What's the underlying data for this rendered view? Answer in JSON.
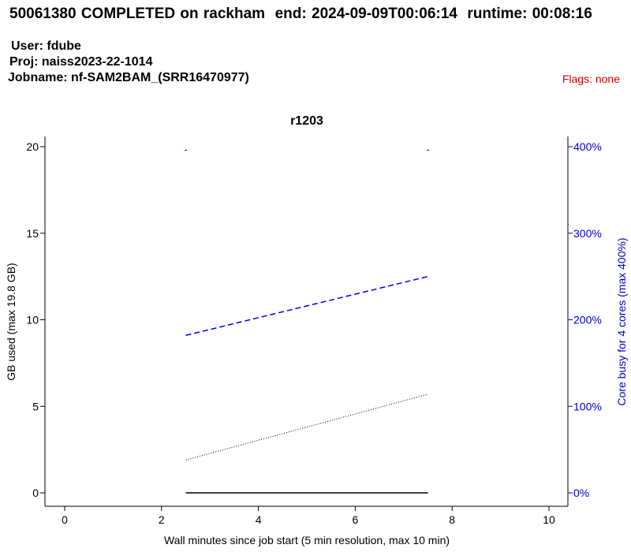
{
  "header": {
    "job_id": "50061380",
    "status_text": "COMPLETED on rackham",
    "end_label": "end:",
    "end_value": "2024-09-09T00:06:14",
    "runtime_label": "runtime:",
    "runtime_value": "00:08:16",
    "user_label": "User:",
    "user_value": "fdube",
    "proj_label": "Proj:",
    "proj_value": "naiss2023-22-1014",
    "jobname_label": "Jobname:",
    "jobname_value": "nf-SAM2BAM_(SRR16470977)",
    "flags_label": "Flags:",
    "flags_value": "none",
    "flags_color": "#d40000"
  },
  "chart_data": {
    "type": "line",
    "title": "r1203",
    "xlabel": "Wall minutes since job start (5 min resolution, max 10 min)",
    "ylabel": "GB used (max 19.8 GB)",
    "y2label": "Core busy for 4 cores (max 400%)",
    "xlim": [
      0,
      10
    ],
    "ylim": [
      0,
      20
    ],
    "y2lim": [
      0,
      400
    ],
    "xticks": [
      0,
      2,
      4,
      6,
      8,
      10
    ],
    "yticks": [
      0,
      5,
      10,
      15,
      20
    ],
    "y2ticks": [
      0,
      100,
      200,
      300,
      400
    ],
    "y2tick_labels": [
      "0%",
      "100%",
      "200%",
      "300%",
      "400%"
    ],
    "grid": false,
    "series": [
      {
        "axis": "y",
        "style": "solid",
        "color": "#000000",
        "x": [
          2.5,
          7.5
        ],
        "values": [
          0.0,
          0.0
        ]
      },
      {
        "axis": "y",
        "style": "dotted",
        "color": "#000000",
        "x": [
          2.5,
          7.5
        ],
        "values": [
          1.9,
          5.7
        ]
      },
      {
        "axis": "y2",
        "style": "dashed",
        "color": "#0000ee",
        "x": [
          2.5,
          7.5
        ],
        "values": [
          182,
          250
        ]
      },
      {
        "axis": "y",
        "style": "marker",
        "color": "#0000ee",
        "x": [
          2.5,
          7.5
        ],
        "values": [
          19.8,
          19.8
        ]
      }
    ],
    "right_axis_color": "#0000cc"
  }
}
